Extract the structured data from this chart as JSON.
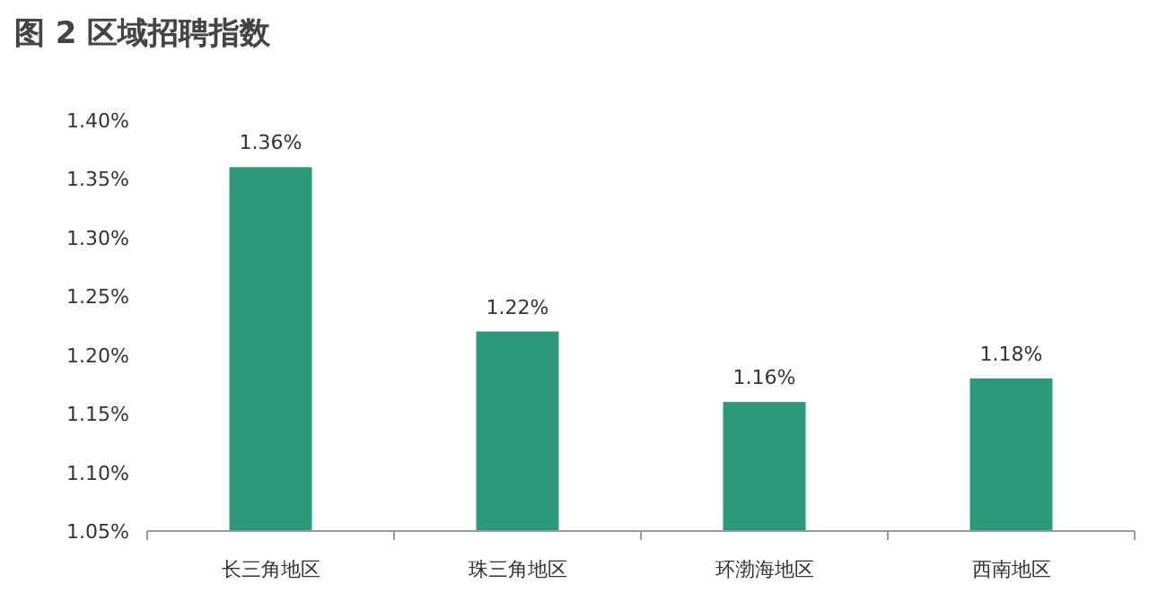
{
  "chart_data": {
    "type": "bar",
    "title": "图 2  区域招聘指数",
    "categories": [
      "长三角地区",
      "珠三角地区",
      "环渤海地区",
      "西南地区"
    ],
    "values": [
      1.36,
      1.22,
      1.16,
      1.18
    ],
    "value_labels": [
      "1.36%",
      "1.22%",
      "1.16%",
      "1.18%"
    ],
    "color": "#2a9a78",
    "ylim": [
      1.05,
      1.4
    ],
    "yticks": [
      {
        "value": 1.05,
        "label": "1.05%"
      },
      {
        "value": 1.1,
        "label": "1.10%"
      },
      {
        "value": 1.15,
        "label": "1.15%"
      },
      {
        "value": 1.2,
        "label": "1.20%"
      },
      {
        "value": 1.25,
        "label": "1.25%"
      },
      {
        "value": 1.3,
        "label": "1.30%"
      },
      {
        "value": 1.35,
        "label": "1.35%"
      },
      {
        "value": 1.4,
        "label": "1.40%"
      }
    ],
    "grid": false
  }
}
